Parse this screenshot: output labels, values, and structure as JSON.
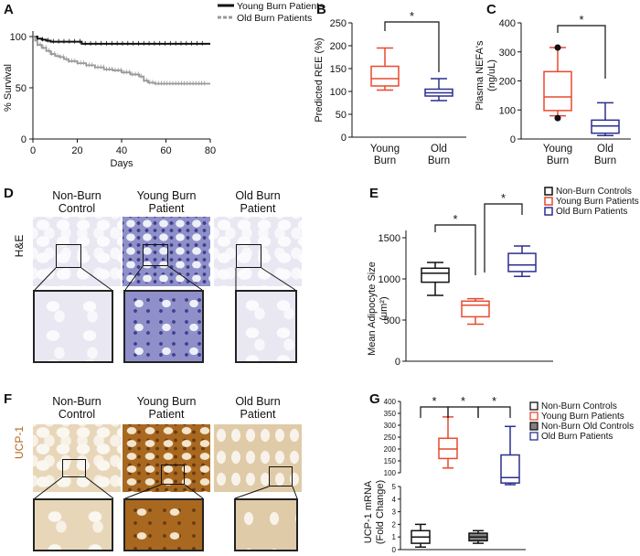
{
  "panels": {
    "A": {
      "label": "A",
      "legend": [
        "Young Burn Patients",
        "Old Burn Patients"
      ],
      "ylabel": "% Survival",
      "xlabel": "Days",
      "yticks": [
        "0",
        "50",
        "100"
      ],
      "xticks": [
        "0",
        "20",
        "40",
        "60",
        "80"
      ]
    },
    "B": {
      "label": "B",
      "ylabel": "Predicted REE (%)",
      "yticks": [
        "0",
        "50",
        "100",
        "150",
        "200",
        "250"
      ],
      "cats": [
        "Young\nBurn",
        "Old\nBurn"
      ],
      "sig": "*"
    },
    "C": {
      "label": "C",
      "ylabel": "Plasma NEFA's\n(ng/uL)",
      "yticks": [
        "0",
        "100",
        "200",
        "300",
        "400"
      ],
      "cats": [
        "Young\nBurn",
        "Old\nBurn"
      ],
      "sig": "*"
    },
    "D": {
      "label": "D",
      "cols": [
        "Non-Burn\nControl",
        "Young Burn\nPatient",
        "Old Burn\nPatient"
      ],
      "side": "H&E"
    },
    "E": {
      "label": "E",
      "ylabel": "Mean Adipocyte Size\n(um²)",
      "yticks": [
        "0",
        "500",
        "1000",
        "1500"
      ],
      "legend": [
        "Non-Burn Controls",
        "Young Burn Patients",
        "Old Burn Patients"
      ],
      "sig": "*"
    },
    "F": {
      "label": "F",
      "cols": [
        "Non-Burn\nControl",
        "Young Burn\nPatient",
        "Old Burn\nPatient"
      ],
      "side": "UCP-1"
    },
    "G": {
      "label": "G",
      "ylabel": "UCP-1 mRNA\n(Fold Change)",
      "yticks_top": [
        "100",
        "150",
        "200",
        "250",
        "300",
        "350",
        "400"
      ],
      "yticks_bottom": [
        "0",
        "1",
        "2",
        "3",
        "4",
        "5"
      ],
      "legend": [
        "Non-Burn Controls",
        "Young Burn Patients",
        "Non-Burn Old Controls",
        "Old Burn Patients"
      ],
      "sig": "*"
    }
  },
  "colors": {
    "young": "#e8492f",
    "old": "#2b2f8f",
    "control": "#111111",
    "grey": "#999999",
    "oldctrl": "#808080"
  },
  "chart_data": [
    {
      "type": "line",
      "title": "",
      "xlabel": "Days",
      "ylabel": "% Survival",
      "xlim": [
        0,
        80
      ],
      "ylim": [
        0,
        100
      ],
      "series": [
        {
          "name": "Young Burn Patients",
          "x": [
            0,
            2,
            4,
            6,
            8,
            12,
            16,
            20,
            22,
            30,
            40,
            50,
            60,
            70,
            80
          ],
          "y": [
            100,
            98,
            97,
            96,
            95,
            95,
            95,
            95,
            93,
            93,
            93,
            93,
            93,
            93,
            93
          ]
        },
        {
          "name": "Old Burn Patients",
          "x": [
            0,
            1,
            2,
            4,
            6,
            8,
            10,
            12,
            14,
            16,
            20,
            24,
            28,
            32,
            36,
            40,
            44,
            48,
            50,
            52,
            55,
            60,
            70,
            80
          ],
          "y": [
            100,
            96,
            92,
            89,
            86,
            83,
            81,
            80,
            78,
            76,
            74,
            72,
            70,
            68,
            67,
            65,
            63,
            61,
            57,
            55,
            54,
            54,
            54,
            54
          ]
        }
      ]
    },
    {
      "type": "box",
      "ylabel": "Predicted REE (%)",
      "ylim": [
        0,
        250
      ],
      "categories": [
        "Young Burn",
        "Old Burn"
      ],
      "boxes": [
        {
          "name": "Young Burn",
          "min": 103,
          "q1": 112,
          "median": 128,
          "q3": 155,
          "max": 195
        },
        {
          "name": "Old Burn",
          "min": 80,
          "q1": 90,
          "median": 97,
          "q3": 105,
          "max": 128
        }
      ]
    },
    {
      "type": "box",
      "ylabel": "Plasma NEFA's (ng/uL)",
      "ylim": [
        0,
        400
      ],
      "categories": [
        "Young Burn",
        "Old Burn"
      ],
      "boxes": [
        {
          "name": "Young Burn",
          "min": 80,
          "q1": 98,
          "median": 145,
          "q3": 232,
          "max": 315,
          "outliers": [
            315,
            72
          ]
        },
        {
          "name": "Old Burn",
          "min": 12,
          "q1": 20,
          "median": 45,
          "q3": 65,
          "max": 125
        }
      ]
    },
    {
      "type": "box",
      "ylabel": "Mean Adipocyte Size (um²)",
      "ylim": [
        0,
        1600
      ],
      "categories": [
        "Non-Burn Controls",
        "Young Burn Patients",
        "Old Burn Patients"
      ],
      "boxes": [
        {
          "name": "Non-Burn Controls",
          "min": 800,
          "q1": 960,
          "median": 1070,
          "q3": 1130,
          "max": 1200
        },
        {
          "name": "Young Burn Patients",
          "min": 450,
          "q1": 540,
          "median": 680,
          "q3": 730,
          "max": 760
        },
        {
          "name": "Old Burn Patients",
          "min": 1030,
          "q1": 1090,
          "median": 1170,
          "q3": 1310,
          "max": 1400
        }
      ]
    },
    {
      "type": "box",
      "ylabel": "UCP-1 mRNA (Fold Change)",
      "categories": [
        "Non-Burn Controls",
        "Young Burn Patients",
        "Non-Burn Old Controls",
        "Old Burn Patients"
      ],
      "boxes": [
        {
          "name": "Non-Burn Controls",
          "min": 0.2,
          "q1": 0.5,
          "median": 1.0,
          "q3": 1.5,
          "max": 2.0
        },
        {
          "name": "Young Burn Patients",
          "min": 120,
          "q1": 160,
          "median": 200,
          "q3": 245,
          "max": 335
        },
        {
          "name": "Non-Burn Old Controls",
          "min": 0.5,
          "q1": 0.7,
          "median": 1.0,
          "q3": 1.3,
          "max": 1.5
        },
        {
          "name": "Old Burn Patients",
          "min": 50,
          "q1": 57,
          "median": 80,
          "q3": 175,
          "max": 295
        }
      ]
    }
  ]
}
